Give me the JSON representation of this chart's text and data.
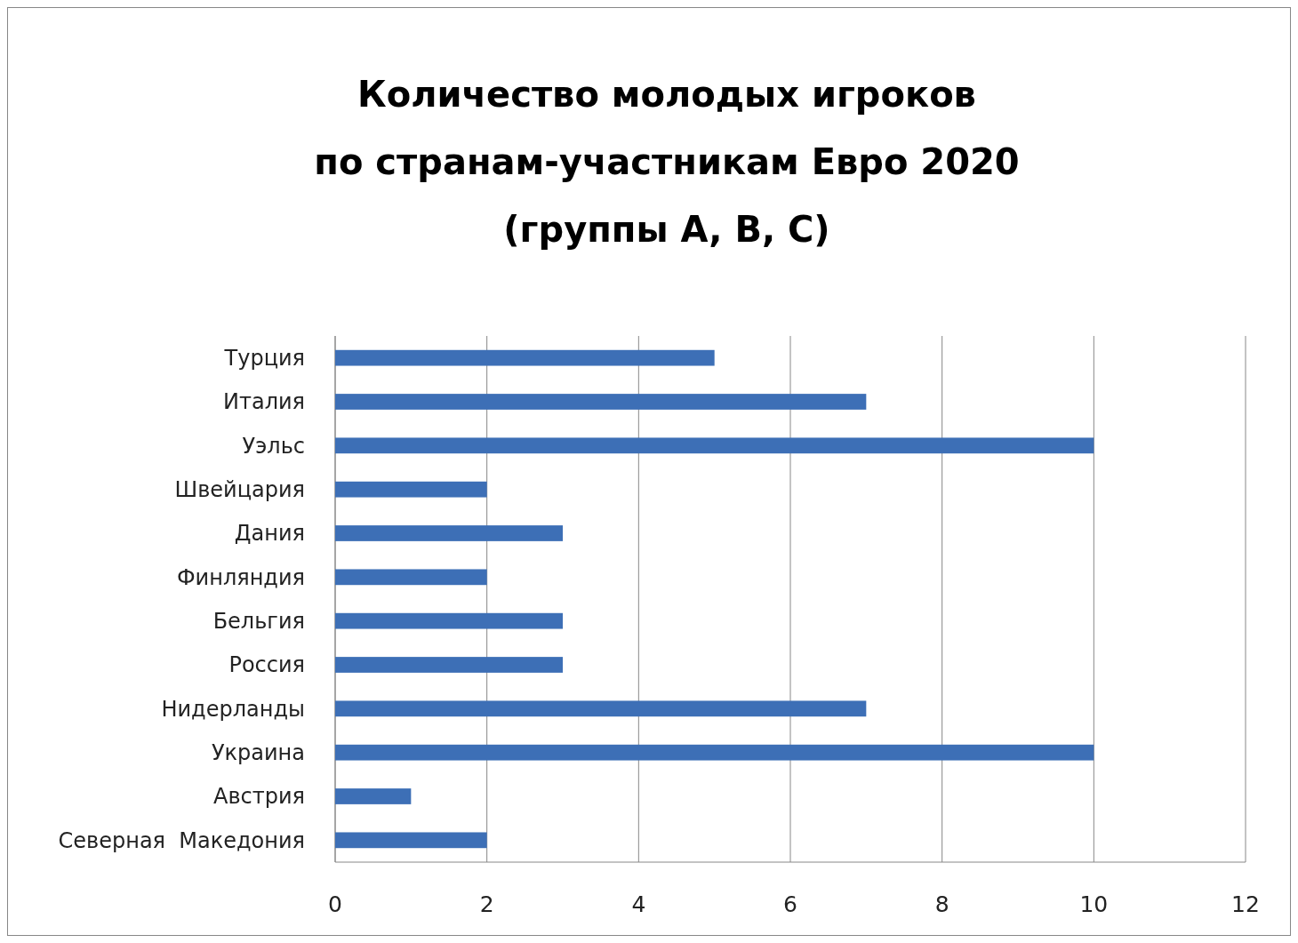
{
  "chart_data": {
    "type": "bar",
    "orientation": "horizontal",
    "title": "Количество молодых игроков\nпо странам-участникам Евро 2020\n(группы A, B, C)",
    "categories": [
      "Турция",
      "Италия",
      "Уэльс",
      "Швейцария",
      "Дания",
      "Финляндия",
      "Бельгия",
      "Россия",
      "Нидерланды",
      "Украина",
      "Австрия",
      "Северная  Македония"
    ],
    "values": [
      5,
      7,
      10,
      2,
      3,
      2,
      3,
      3,
      7,
      10,
      1,
      2
    ],
    "color": "#3d6fb6",
    "xlim": [
      0,
      12
    ],
    "xticks": [
      0,
      2,
      4,
      6,
      8,
      10,
      12
    ],
    "grid": "x"
  }
}
